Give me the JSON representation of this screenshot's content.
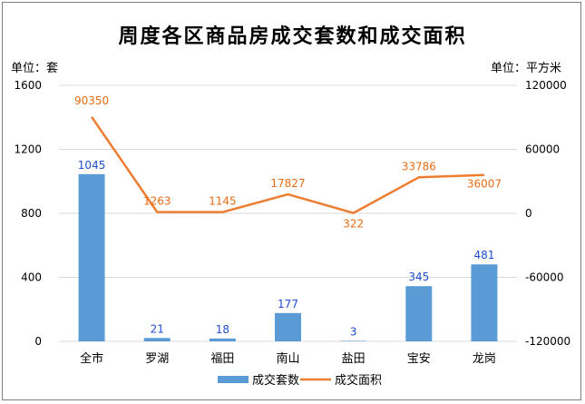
{
  "unit_left": "单位：套",
  "unit_right": "单位：平方米",
  "colors": {
    "bar": "#5b9bd5",
    "line": "#ed7d31",
    "bar_label": "#1f4fd1",
    "line_label": "#e66c17",
    "grid": "#d9d9d9"
  },
  "chart_data": {
    "type": "bar",
    "title": "周度各区商品房成交套数和成交面积",
    "categories": [
      "全市",
      "罗湖",
      "福田",
      "南山",
      "盐田",
      "宝安",
      "龙岗"
    ],
    "y_left": {
      "ylim": [
        0,
        1600
      ],
      "ticks": [
        "0",
        "400",
        "800",
        "1200",
        "1600"
      ]
    },
    "y_right": {
      "ylim": [
        -120000,
        120000
      ],
      "ticks": [
        "-120000",
        "-60000",
        "0",
        "60000",
        "120000"
      ]
    },
    "grid": true,
    "legend_position": "bottom",
    "series": [
      {
        "name": "成交套数",
        "type": "bar",
        "axis": "left",
        "values": [
          1045,
          21,
          18,
          177,
          3,
          345,
          481
        ]
      },
      {
        "name": "成交面积",
        "type": "line",
        "axis": "right",
        "values": [
          90350,
          1263,
          1145,
          17827,
          322,
          33786,
          36007
        ]
      }
    ]
  }
}
